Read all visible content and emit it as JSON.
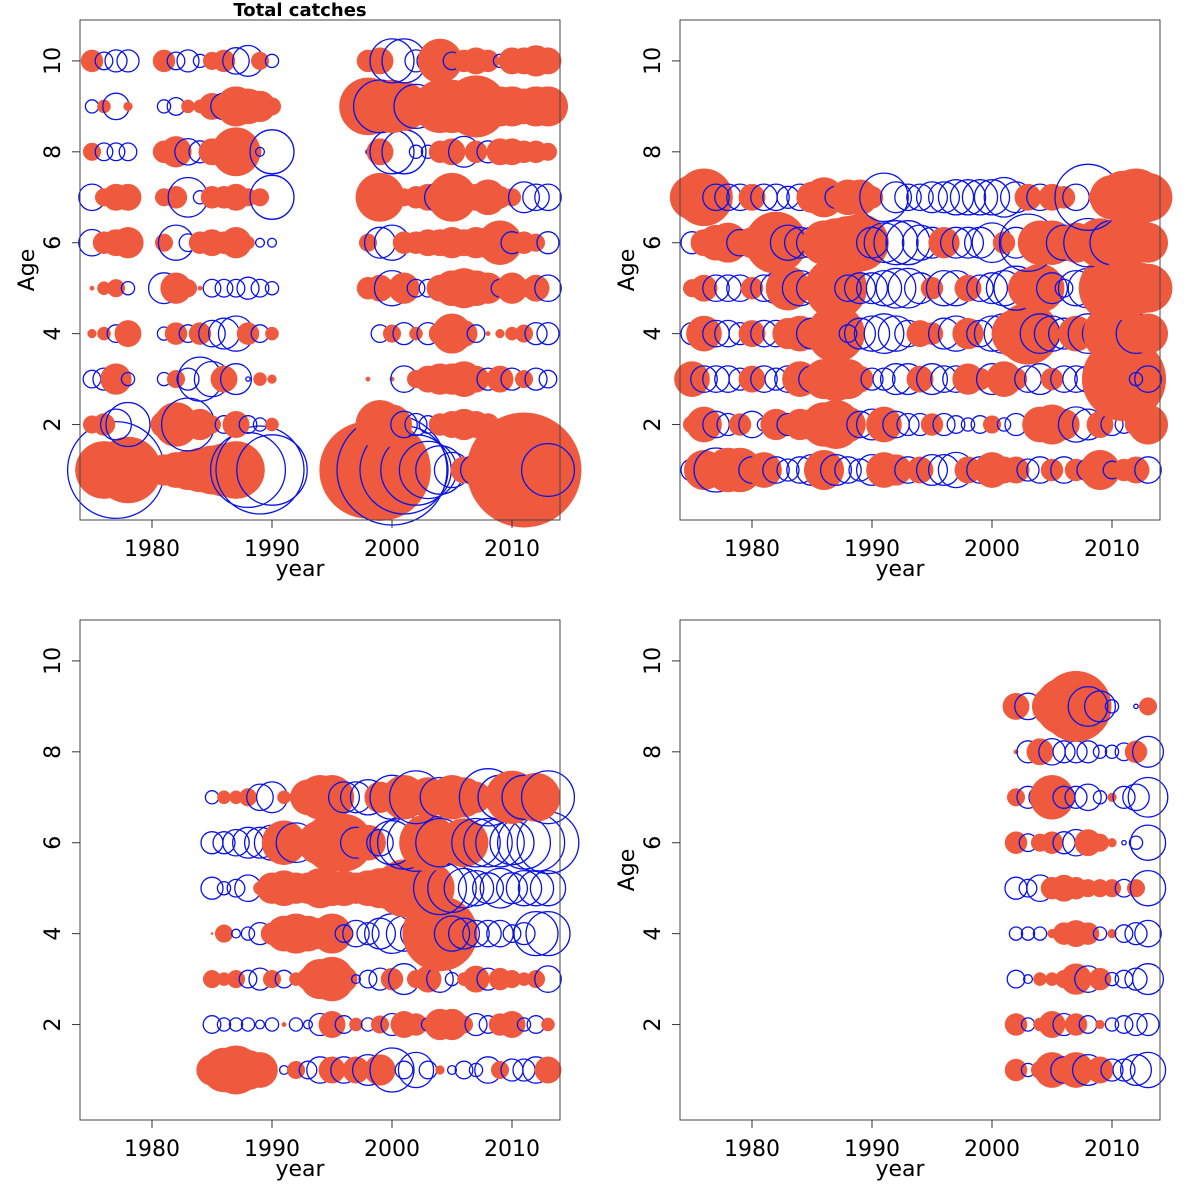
{
  "figure": {
    "colors": {
      "positive": "#ef5a3f",
      "negative": "#0a14e6",
      "axis": "#444444",
      "text": "#000000"
    }
  },
  "chart_data": [
    {
      "type": "scatter",
      "title": "Total catches",
      "xlabel": "year",
      "ylabel": "Age",
      "xlim": [
        1974,
        2014
      ],
      "ylim": [
        -0.1,
        10.9
      ],
      "xticks": [
        1980,
        1990,
        2000,
        2010
      ],
      "yticks": [
        2,
        4,
        6,
        8,
        10
      ],
      "years": [
        1975,
        1976,
        1977,
        1978,
        1979,
        1981,
        1982,
        1983,
        1984,
        1985,
        1986,
        1987,
        1988,
        1989,
        1990,
        1998,
        1999,
        2000,
        2001,
        2002,
        2003,
        2004,
        2005,
        2006,
        2007,
        2008,
        2009,
        2010,
        2011,
        2012,
        2013
      ],
      "residuals": {
        "1": [
          -0.2,
          1.3,
          -2.2,
          1.5,
          0,
          0.7,
          0.8,
          0.9,
          1.0,
          1.1,
          1.2,
          1.3,
          -1.7,
          -2.0,
          -1.6,
          2.2,
          2.3,
          -2.5,
          -2.0,
          -1.6,
          -1.3,
          -1.1,
          -0.8,
          0.6,
          -0.7,
          -0.6,
          -0.6,
          -0.9,
          2.6,
          2.0,
          -1.2
        ],
        "2": [
          0.4,
          0.5,
          -0.7,
          -1.0,
          0,
          0.6,
          1.0,
          -1.2,
          0.7,
          0.4,
          -0.4,
          0.6,
          -0.4,
          -0.3,
          0.3,
          0.3,
          1.1,
          0.9,
          -0.6,
          -0.5,
          -0.4,
          0.5,
          0.6,
          0.7,
          0.6,
          0.5,
          0.1,
          0,
          0.1,
          0.1,
          0
        ],
        "3": [
          -0.4,
          -0.5,
          0.7,
          -0.3,
          0,
          -0.3,
          0.4,
          -0.5,
          -1.0,
          -0.8,
          0.6,
          -0.7,
          -0.1,
          0.3,
          0.2,
          0.1,
          0,
          0.1,
          -0.6,
          0.4,
          0.6,
          0.7,
          0.7,
          0.8,
          0.6,
          -0.5,
          0.6,
          -0.5,
          0.4,
          -0.5,
          -0.4
        ],
        "4": [
          0.2,
          0.3,
          -0.4,
          0.6,
          0,
          -0.3,
          0.5,
          -0.4,
          0.5,
          -0.6,
          -0.7,
          -0.8,
          0.5,
          -0.4,
          0.3,
          0,
          -0.4,
          0.4,
          -0.5,
          0.3,
          -0.5,
          0.5,
          0.9,
          0.6,
          -0.4,
          0.1,
          0.2,
          0.3,
          0.4,
          -0.5,
          -0.5
        ],
        "5": [
          0.1,
          0.3,
          0.4,
          -0.3,
          0,
          -0.7,
          0.7,
          0.4,
          0.1,
          -0.4,
          -0.4,
          -0.4,
          -0.5,
          -0.4,
          -0.3,
          0.5,
          0.6,
          -0.8,
          0.7,
          -0.4,
          -0.4,
          0.6,
          0.8,
          0.9,
          0.8,
          0.7,
          -0.4,
          0.7,
          0.4,
          0.6,
          -0.6
        ],
        "6": [
          -0.6,
          0.5,
          0.6,
          0.7,
          0,
          0.4,
          -0.8,
          -0.4,
          0.5,
          0.6,
          0.5,
          0.7,
          0.3,
          -0.2,
          -0.2,
          0.4,
          -0.7,
          -0.8,
          0.5,
          0.5,
          0.6,
          0.6,
          0.7,
          0.6,
          0.7,
          0.7,
          1.0,
          -0.5,
          0.5,
          0.4,
          -0.5
        ],
        "7": [
          -0.6,
          0.4,
          0.6,
          0.6,
          0,
          0.4,
          0.5,
          -0.9,
          -0.3,
          0.5,
          0.5,
          0.6,
          0.4,
          0.4,
          -1.0,
          0.5,
          1.1,
          0.6,
          0.4,
          0.5,
          0.6,
          -0.7,
          1.1,
          0.5,
          0.6,
          0.8,
          0.5,
          0.4,
          -0.7,
          -0.6,
          -0.6
        ],
        "8": [
          0.4,
          -0.4,
          -0.4,
          -0.4,
          0,
          0.5,
          0.7,
          -0.6,
          -0.5,
          0.6,
          0.5,
          1.1,
          0.6,
          -0.2,
          -1.0,
          -0.1,
          0.6,
          -1.0,
          -1.0,
          -0.3,
          -0.3,
          0.5,
          0.6,
          -0.7,
          0.5,
          -0.5,
          0.6,
          0.6,
          0.5,
          0.5,
          0.4
        ],
        "9": [
          -0.3,
          0.3,
          -0.6,
          0.2,
          0,
          -0.3,
          -0.4,
          0.3,
          0.3,
          0.6,
          -0.6,
          0.9,
          0.8,
          0.7,
          0.4,
          1.3,
          -1.2,
          1.2,
          1.1,
          -1.0,
          0.9,
          1.2,
          1.2,
          1.1,
          1.4,
          1.0,
          0.9,
          0.9,
          0.8,
          0.9,
          0.9
        ],
        "10": [
          0.5,
          -0.4,
          -0.5,
          -0.5,
          0,
          0.5,
          -0.4,
          -0.5,
          -0.3,
          0.4,
          0.5,
          -0.6,
          -0.7,
          0.4,
          -0.3,
          0.5,
          0.6,
          -1.0,
          -1.0,
          -0.5,
          -0.5,
          1.0,
          -0.4,
          0.5,
          0.6,
          0.5,
          -0.3,
          0.6,
          0.6,
          0.7,
          0.6
        ]
      }
    },
    {
      "type": "scatter",
      "title": "",
      "xlabel": "year",
      "ylabel": "Age",
      "xlim": [
        1974,
        2014
      ],
      "ylim": [
        -0.1,
        10.9
      ],
      "xticks": [
        1980,
        1990,
        2000,
        2010
      ],
      "yticks": [
        2,
        4,
        6,
        8,
        10
      ],
      "years": [
        1975,
        1976,
        1977,
        1978,
        1979,
        1980,
        1981,
        1982,
        1983,
        1984,
        1985,
        1986,
        1987,
        1988,
        1989,
        1990,
        1991,
        1992,
        1993,
        1994,
        1995,
        1996,
        1997,
        1998,
        1999,
        2000,
        2001,
        2002,
        2003,
        2004,
        2005,
        2006,
        2007,
        2008,
        2009,
        2010,
        2011,
        2012,
        2013
      ],
      "residuals": {
        "1": [
          -0.5,
          0.9,
          -1.0,
          1.0,
          1.0,
          -0.6,
          0.8,
          -0.6,
          -0.5,
          -0.6,
          -0.7,
          0.9,
          -0.7,
          -0.6,
          -0.5,
          -0.7,
          0.8,
          0.7,
          -0.6,
          0.6,
          -0.7,
          -0.7,
          -0.8,
          0.6,
          -0.6,
          0.8,
          0.6,
          0.6,
          -0.5,
          -0.6,
          0.5,
          -0.6,
          0.5,
          -0.5,
          0.9,
          -0.4,
          0.5,
          0.6,
          -0.6
        ],
        "2": [
          0.4,
          0.8,
          -0.6,
          -0.5,
          0.5,
          -0.6,
          -0.3,
          0.7,
          -0.5,
          0.7,
          0.7,
          1.0,
          1.1,
          0.8,
          -0.6,
          -0.7,
          0.8,
          -0.6,
          -0.5,
          -0.5,
          0.5,
          -0.5,
          -0.4,
          -0.3,
          -0.4,
          0.4,
          -0.3,
          -0.5,
          -0.2,
          0.8,
          0.9,
          0.7,
          -0.8,
          -0.7,
          0.6,
          -0.5,
          -0.4,
          0.5,
          0.9
        ],
        "3": [
          0.8,
          -0.6,
          -0.6,
          -0.6,
          -0.5,
          0.6,
          -0.6,
          -0.5,
          -0.6,
          0.8,
          -0.6,
          0.9,
          1.0,
          0.9,
          0.6,
          -0.5,
          -0.5,
          -0.7,
          -0.7,
          0.6,
          -0.7,
          -0.6,
          -0.6,
          0.7,
          0.5,
          -0.7,
          0.8,
          0.5,
          -0.6,
          -0.7,
          0.5,
          -0.6,
          -0.6,
          -0.6,
          -0.7,
          -0.8,
          1.9,
          -0.3,
          -0.6
        ],
        "4": [
          -0.5,
          0.8,
          -0.6,
          -0.6,
          -0.5,
          0.6,
          -0.6,
          -0.6,
          0.7,
          0.8,
          -0.7,
          0.9,
          1.3,
          -0.4,
          -0.7,
          -0.8,
          -0.9,
          -0.8,
          -0.6,
          0.6,
          0.5,
          -0.7,
          -0.8,
          0.7,
          -0.6,
          -0.8,
          -0.9,
          1.1,
          1.4,
          -0.9,
          -0.8,
          -0.7,
          0.8,
          -0.9,
          -0.8,
          1.3,
          1.1,
          -0.9,
          0.9
        ],
        "5": [
          0.4,
          0.6,
          -0.6,
          -0.6,
          -0.6,
          0.5,
          -0.6,
          -0.7,
          1.0,
          -0.8,
          -0.7,
          0.6,
          1.4,
          -0.6,
          -0.7,
          -0.7,
          -0.8,
          -0.9,
          -0.9,
          -0.7,
          0.5,
          -0.8,
          -0.8,
          0.6,
          -0.6,
          -0.7,
          -0.8,
          -1.0,
          0.9,
          1.1,
          -0.7,
          -0.4,
          -0.8,
          -0.9,
          0.6,
          1.5,
          1.4,
          1.2,
          1.1
        ],
        "6": [
          -0.5,
          0.6,
          0.8,
          0.9,
          -0.6,
          0.7,
          -0.6,
          1.4,
          -0.8,
          -0.7,
          -0.7,
          1.0,
          1.1,
          1.2,
          1.3,
          -0.7,
          -0.9,
          -1.0,
          -1.0,
          -0.8,
          -0.7,
          0.7,
          -0.7,
          -0.7,
          -0.7,
          -0.9,
          0.5,
          -0.7,
          -1.3,
          1.0,
          1.0,
          -0.8,
          0.9,
          -1.1,
          1.1,
          -1.0,
          1.2,
          0.9,
          0.9
        ],
        "7": [
          1.0,
          1.3,
          -0.6,
          -0.6,
          -0.6,
          0.6,
          -0.6,
          -0.6,
          -0.5,
          -0.6,
          0.7,
          0.9,
          -0.5,
          0.8,
          0.8,
          0.5,
          -1.1,
          -0.7,
          -0.6,
          -0.6,
          -0.7,
          -0.7,
          -0.8,
          -0.8,
          -0.8,
          -0.8,
          -0.9,
          -0.7,
          0.6,
          -0.6,
          0.6,
          0.5,
          -0.6,
          -1.5,
          0.5,
          1.0,
          1.2,
          1.3,
          1.1
        ]
      }
    },
    {
      "type": "scatter",
      "title": "",
      "xlabel": "year",
      "ylabel": "",
      "xlim": [
        1974,
        2014
      ],
      "ylim": [
        -0.1,
        10.9
      ],
      "xticks": [
        1980,
        1990,
        2000,
        2010
      ],
      "yticks": [
        2,
        4,
        6,
        8,
        10
      ],
      "years": [
        1985,
        1986,
        1987,
        1988,
        1989,
        1990,
        1991,
        1992,
        1993,
        1994,
        1995,
        1996,
        1997,
        1998,
        1999,
        2000,
        2001,
        2002,
        2003,
        2004,
        2005,
        2006,
        2007,
        2008,
        2009,
        2010,
        2011,
        2012,
        2013
      ],
      "residuals": {
        "1": [
          0.7,
          1.0,
          1.1,
          0.9,
          0.8,
          0.2,
          -0.2,
          0.4,
          -0.4,
          -0.6,
          0.6,
          -0.6,
          0.6,
          -0.7,
          0.7,
          -1.0,
          -0.4,
          -0.8,
          -0.4,
          0.2,
          -0.2,
          -0.4,
          -0.3,
          -0.6,
          0.4,
          -0.5,
          -0.5,
          -0.6,
          0.6
        ],
        "2": [
          -0.4,
          -0.3,
          -0.3,
          -0.3,
          -0.2,
          -0.3,
          0.1,
          -0.3,
          -0.2,
          -0.5,
          0.6,
          -0.4,
          0.3,
          -0.3,
          0.4,
          -0.5,
          0.6,
          0.5,
          -0.3,
          0.7,
          0.7,
          0.4,
          -0.5,
          -0.4,
          0.5,
          0.6,
          -0.3,
          -0.4,
          0.3
        ],
        "3": [
          0.4,
          0.3,
          0.4,
          -0.4,
          -0.5,
          0.4,
          -0.4,
          0.3,
          0.5,
          0.9,
          1.0,
          0.6,
          -0.2,
          -0.4,
          -0.5,
          0.5,
          -0.7,
          0.4,
          0.6,
          -0.6,
          -0.3,
          0.3,
          0.6,
          -0.5,
          0.5,
          0.4,
          0.3,
          0.4,
          -0.6
        ],
        "4": [
          0.05,
          0.4,
          -0.2,
          -0.3,
          -0.5,
          0.5,
          0.8,
          0.9,
          0.8,
          0.7,
          0.9,
          -0.4,
          -0.6,
          -0.5,
          -0.7,
          -0.9,
          -0.8,
          -0.7,
          -0.8,
          1.7,
          -0.8,
          -0.7,
          -0.6,
          -0.6,
          -0.6,
          -0.4,
          -0.5,
          -1.0,
          -1.0
        ],
        "5": [
          -0.5,
          -0.3,
          -0.4,
          -0.6,
          0.3,
          0.7,
          0.8,
          0.7,
          0.7,
          0.9,
          0.8,
          0.8,
          0.7,
          0.8,
          0.9,
          1.0,
          1.3,
          1.4,
          1.2,
          -1.2,
          -1.1,
          -0.9,
          -0.8,
          -0.7,
          -0.9,
          -0.7,
          -0.8,
          -0.8,
          -0.8
        ],
        "6": [
          -0.5,
          -0.5,
          -0.6,
          -0.7,
          -0.7,
          -0.8,
          1.0,
          -0.9,
          -0.3,
          1.0,
          1.3,
          1.3,
          -0.7,
          0.8,
          -0.6,
          -1.0,
          -1.2,
          -1.3,
          1.3,
          -1.1,
          0.9,
          1.1,
          -1.1,
          -1.1,
          -1.1,
          -1.0,
          -1.2,
          -1.3,
          -1.4
        ],
        "7": [
          -0.3,
          0.3,
          0.3,
          0.4,
          -0.6,
          -0.7,
          0.3,
          0.3,
          0.8,
          1.0,
          1.0,
          -0.7,
          -0.7,
          -0.8,
          0.7,
          -1.0,
          1.0,
          -1.2,
          0.9,
          -0.9,
          1.0,
          0.9,
          0.7,
          -1.3,
          -1.0,
          1.2,
          -1.0,
          1.1,
          -1.2
        ]
      }
    },
    {
      "type": "scatter",
      "title": "",
      "xlabel": "year",
      "ylabel": "Age",
      "xlim": [
        1974,
        2014
      ],
      "ylim": [
        -0.1,
        10.9
      ],
      "xticks": [
        1980,
        1990,
        2000,
        2010
      ],
      "yticks": [
        2,
        4,
        6,
        8,
        10
      ],
      "years": [
        2002,
        2003,
        2004,
        2005,
        2006,
        2007,
        2008,
        2009,
        2010,
        2011,
        2012,
        2013
      ],
      "residuals": {
        "1": [
          0.5,
          -0.3,
          0.4,
          0.8,
          -0.6,
          0.8,
          -0.7,
          0.6,
          -0.5,
          -0.5,
          -0.7,
          -0.8
        ],
        "2": [
          0.5,
          -0.3,
          0.3,
          0.6,
          -0.5,
          0.5,
          -0.4,
          0.2,
          -0.3,
          -0.4,
          -0.5,
          -0.5
        ],
        "3": [
          -0.4,
          -0.2,
          0.3,
          0.3,
          0.4,
          0.7,
          -0.6,
          0.5,
          -0.3,
          -0.4,
          -0.5,
          -0.7
        ],
        "4": [
          -0.3,
          -0.3,
          -0.3,
          0.2,
          0.5,
          0.6,
          0.5,
          -0.3,
          0.2,
          -0.4,
          -0.5,
          -0.6
        ],
        "5": [
          -0.5,
          -0.4,
          -0.6,
          0.5,
          0.6,
          0.5,
          0.4,
          0.4,
          0.4,
          -0.4,
          0.4,
          -0.8
        ],
        "6": [
          0.5,
          -0.4,
          0.4,
          0.5,
          -0.5,
          -0.6,
          0.6,
          0.4,
          0.2,
          -0.1,
          -0.3,
          -0.8
        ],
        "7": [
          0.4,
          -0.5,
          -0.5,
          1.0,
          -0.5,
          -0.5,
          -0.6,
          -0.3,
          0.2,
          -0.5,
          -0.6,
          -0.9
        ],
        "8": [
          0.1,
          -0.5,
          0.6,
          -0.6,
          -0.5,
          -0.5,
          -0.5,
          -0.3,
          -0.3,
          -0.4,
          0.5,
          -0.7
        ],
        "9": [
          0.6,
          -0.6,
          0.3,
          0.9,
          1.3,
          1.6,
          -0.9,
          -0.7,
          -0.3,
          0,
          -0.1,
          0.4
        ]
      }
    }
  ]
}
